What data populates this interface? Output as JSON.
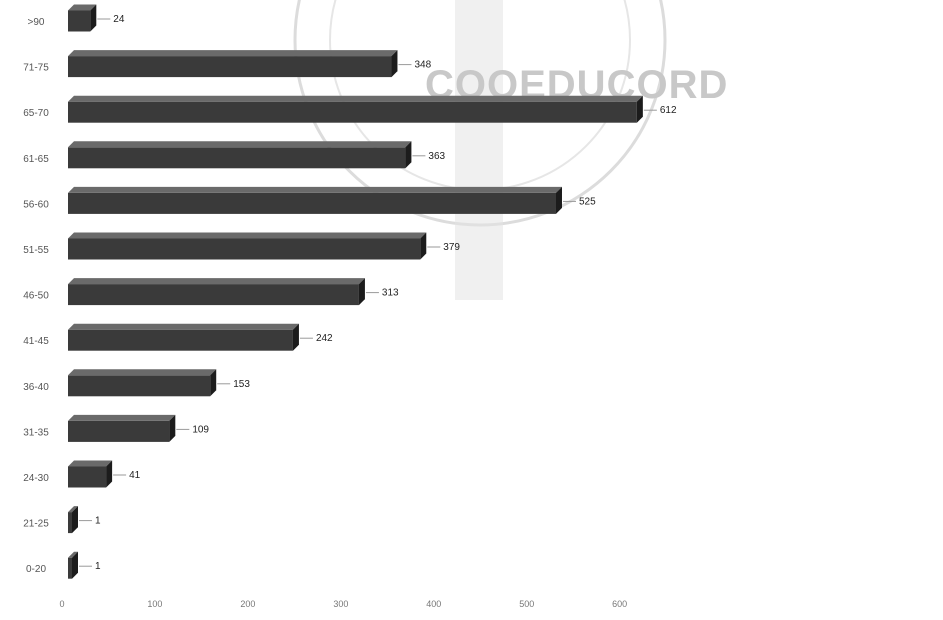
{
  "watermark": {
    "text": "COOEDUCORD"
  },
  "colors": {
    "bar_front": "#3a3a3a",
    "bar_top": "#6a6a6a",
    "bar_side": "#1c1c1c",
    "leader": "#9a9a9a"
  },
  "chart_data": {
    "type": "bar",
    "orientation": "horizontal",
    "categories": [
      ">90",
      "71-75",
      "65-70",
      "61-65",
      "56-60",
      "51-55",
      "46-50",
      "41-45",
      "36-40",
      "31-35",
      "24-30",
      "21-25",
      "0-20"
    ],
    "values": [
      24,
      348,
      612,
      363,
      525,
      379,
      313,
      242,
      153,
      109,
      41,
      1,
      1
    ],
    "x_ticks": [
      "0",
      "100",
      "200",
      "300",
      "400",
      "500",
      "600"
    ],
    "xlim": [
      0,
      600
    ],
    "title": "",
    "xlabel": "",
    "ylabel": "",
    "grid": false,
    "legend": "none"
  }
}
